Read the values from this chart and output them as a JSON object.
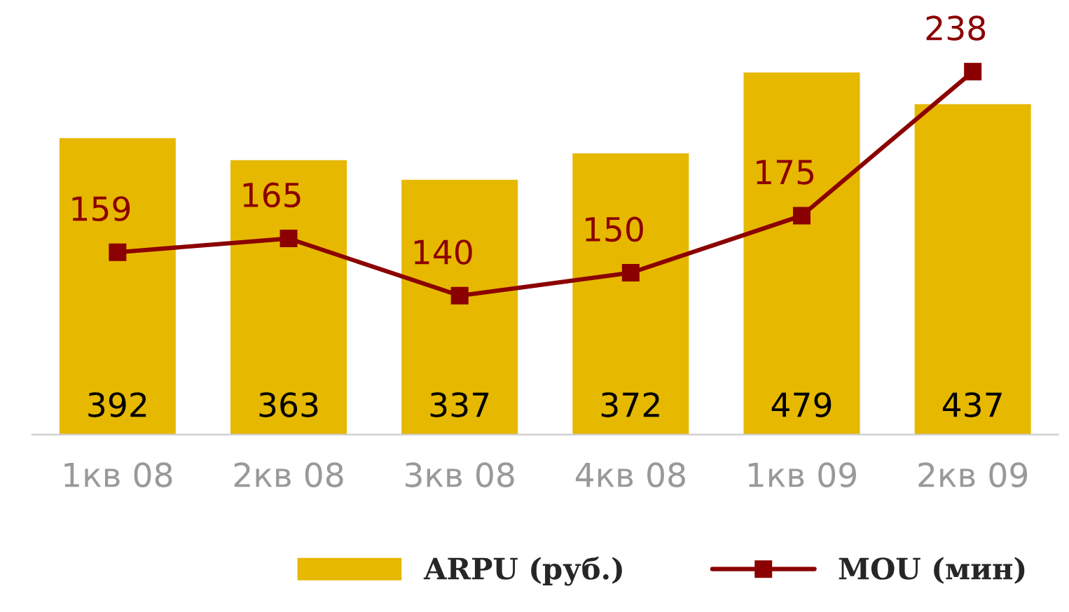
{
  "chart_data": {
    "type": "bar",
    "categories": [
      "1кв 08",
      "2кв 08",
      "3кв 08",
      "4кв 08",
      "1кв 09",
      "2кв 09"
    ],
    "series": [
      {
        "name": "ARPU (руб.)",
        "color": "#e6b800",
        "values": [
          392,
          363,
          337,
          372,
          479,
          437
        ]
      },
      {
        "name": "MOU (мин)",
        "type": "line",
        "axis": "y2",
        "color": "#8b0000",
        "marker": "square",
        "line_style": "solid",
        "values": [
          159,
          165,
          140,
          150,
          175,
          238
        ]
      }
    ],
    "data_labels": true,
    "legend": "bottom",
    "grid": false,
    "tick_labels": "x"
  }
}
